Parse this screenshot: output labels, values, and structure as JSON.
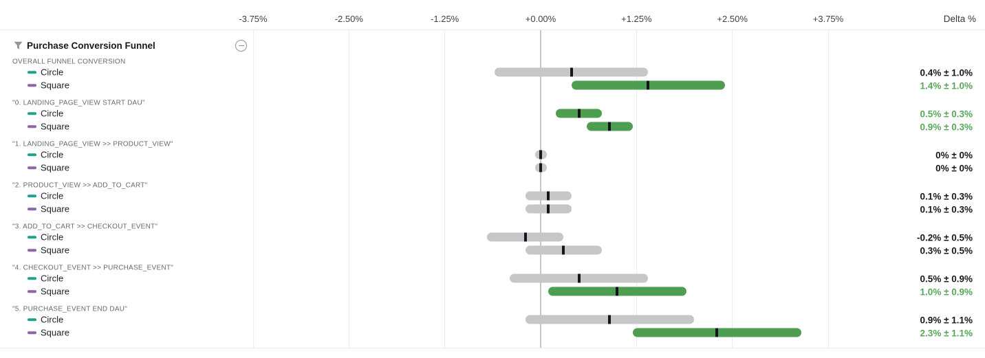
{
  "header": {
    "title": "Purchase Conversion Funnel"
  },
  "axis": {
    "delta_label": "Delta %"
  },
  "colors": {
    "bar_gray": "#c7c7c9",
    "bar_green": "#4e9e52",
    "text_dark": "#16191d",
    "text_green": "#58a75a",
    "series_circle": "#1fa18c",
    "series_square": "#8e64a9",
    "gridline": "#ececf0",
    "zero_line": "#c6c6ca",
    "group_label_gray": "#646b74",
    "icon_gray": "#8f969e"
  },
  "chart_data": {
    "type": "bar",
    "variant": "confidence-interval-forest-plot",
    "title": "Purchase Conversion Funnel",
    "xlabel": "Delta %",
    "x_ticks_percent": [
      -3.75,
      -2.5,
      -1.25,
      0,
      1.25,
      2.5,
      3.75
    ],
    "x_tick_labels": [
      "-3.75%",
      "-2.50%",
      "-1.25%",
      "+0.00%",
      "+1.25%",
      "+2.50%",
      "+3.75%"
    ],
    "grid": true,
    "series": [
      "Circle",
      "Square"
    ],
    "groups": [
      {
        "label": "OVERALL FUNNEL CONVERSION",
        "rows": [
          {
            "series": "Circle",
            "delta": 0.4,
            "margin": 1.0,
            "display": "0.4% ± 1.0%",
            "significant": false
          },
          {
            "series": "Square",
            "delta": 1.4,
            "margin": 1.0,
            "display": "1.4% ± 1.0%",
            "significant": true
          }
        ]
      },
      {
        "label": "\"0. LANDING_PAGE_VIEW START DAU\"",
        "rows": [
          {
            "series": "Circle",
            "delta": 0.5,
            "margin": 0.3,
            "display": "0.5% ± 0.3%",
            "significant": true
          },
          {
            "series": "Square",
            "delta": 0.9,
            "margin": 0.3,
            "display": "0.9% ± 0.3%",
            "significant": true
          }
        ]
      },
      {
        "label": "\"1. LANDING_PAGE_VIEW >> PRODUCT_VIEW\"",
        "rows": [
          {
            "series": "Circle",
            "delta": 0,
            "margin": 0,
            "display": "0% ± 0%",
            "significant": false
          },
          {
            "series": "Square",
            "delta": 0,
            "margin": 0,
            "display": "0% ± 0%",
            "significant": false
          }
        ]
      },
      {
        "label": "\"2. PRODUCT_VIEW >> ADD_TO_CART\"",
        "rows": [
          {
            "series": "Circle",
            "delta": 0.1,
            "margin": 0.3,
            "display": "0.1% ± 0.3%",
            "significant": false
          },
          {
            "series": "Square",
            "delta": 0.1,
            "margin": 0.3,
            "display": "0.1% ± 0.3%",
            "significant": false
          }
        ]
      },
      {
        "label": "\"3. ADD_TO_CART >> CHECKOUT_EVENT\"",
        "rows": [
          {
            "series": "Circle",
            "delta": -0.2,
            "margin": 0.5,
            "display": "-0.2% ± 0.5%",
            "significant": false
          },
          {
            "series": "Square",
            "delta": 0.3,
            "margin": 0.5,
            "display": "0.3% ± 0.5%",
            "significant": false
          }
        ]
      },
      {
        "label": "\"4. CHECKOUT_EVENT >> PURCHASE_EVENT\"",
        "rows": [
          {
            "series": "Circle",
            "delta": 0.5,
            "margin": 0.9,
            "display": "0.5% ± 0.9%",
            "significant": false
          },
          {
            "series": "Square",
            "delta": 1.0,
            "margin": 0.9,
            "display": "1.0% ± 0.9%",
            "significant": true
          }
        ]
      },
      {
        "label": "\"5. PURCHASE_EVENT END DAU\"",
        "rows": [
          {
            "series": "Circle",
            "delta": 0.9,
            "margin": 1.1,
            "display": "0.9% ± 1.1%",
            "significant": false
          },
          {
            "series": "Square",
            "delta": 2.3,
            "margin": 1.1,
            "display": "2.3% ± 1.1%",
            "significant": true
          }
        ]
      }
    ]
  }
}
